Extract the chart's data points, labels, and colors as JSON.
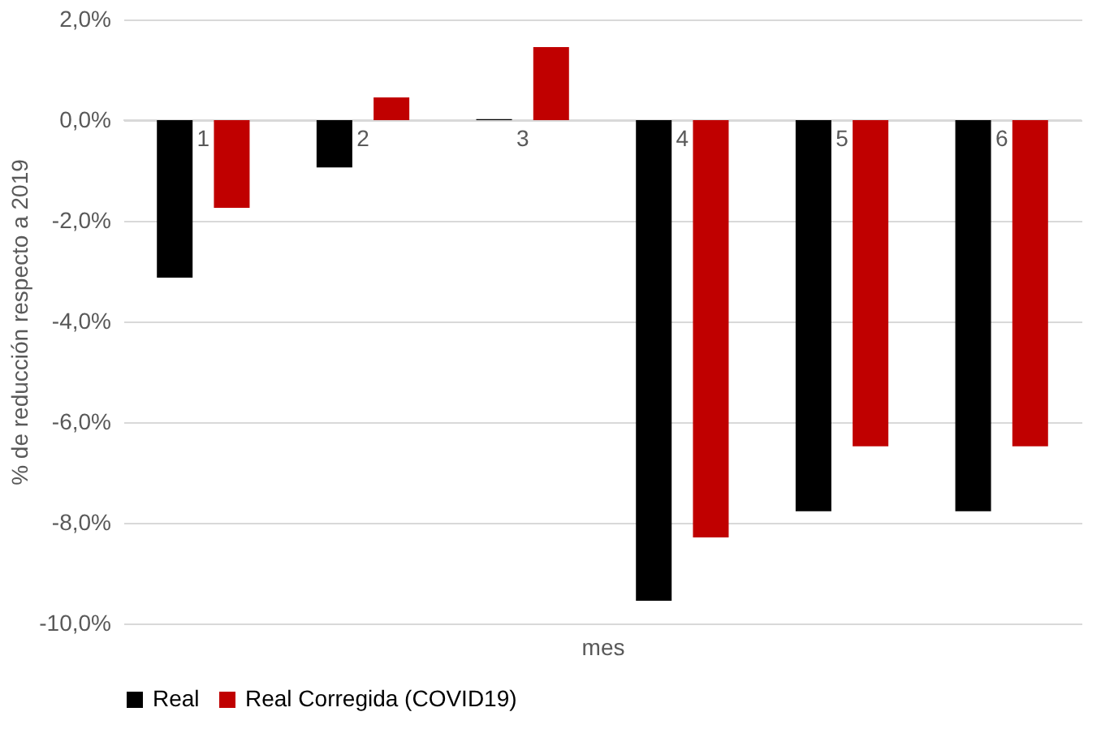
{
  "chart_data": {
    "type": "bar",
    "xlabel": "mes",
    "ylabel": "% de reducción respecto a 2019",
    "categories": [
      "1",
      "2",
      "3",
      "4",
      "5",
      "6"
    ],
    "series": [
      {
        "name": "Real",
        "color": "#000000",
        "values": [
          -3.13,
          -0.94,
          0.02,
          -9.55,
          -7.77,
          -7.77
        ]
      },
      {
        "name": "Real Corregida (COVID19)",
        "color": "#c00000",
        "values": [
          -1.74,
          0.45,
          1.45,
          -8.29,
          -6.48,
          -6.48
        ]
      }
    ],
    "ylim": [
      -10,
      2
    ],
    "yticks": [
      {
        "value": -10,
        "label": "-10,0%"
      },
      {
        "value": -8,
        "label": "-8,0%"
      },
      {
        "value": -6,
        "label": "-6,0%"
      },
      {
        "value": -4,
        "label": "-4,0%"
      },
      {
        "value": -2,
        "label": "-2,0%"
      },
      {
        "value": 0,
        "label": "0,0%"
      },
      {
        "value": 2,
        "label": "2,0%"
      }
    ],
    "grid": "y",
    "legend": "bottom"
  }
}
